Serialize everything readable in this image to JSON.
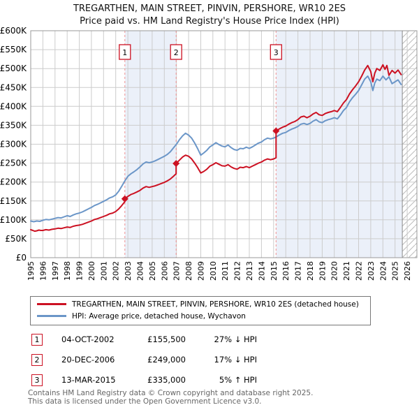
{
  "title": "TREGARTHEN, MAIN STREET, PINVIN, PERSHORE, WR10 2ES",
  "subtitle": "Price paid vs. HM Land Registry's House Price Index (HPI)",
  "legend": [
    {
      "label": "TREGARTHEN, MAIN STREET, PINVIN, PERSHORE, WR10 2ES (detached house)",
      "color": "#cc1122"
    },
    {
      "label": "HPI: Average price, detached house, Wychavon",
      "color": "#6b96c8"
    }
  ],
  "sales": [
    {
      "num": "1",
      "date": "04-OCT-2002",
      "price": "£155,500",
      "hpi": "27% ↓ HPI",
      "year": 2002.75,
      "value": 155.5
    },
    {
      "num": "2",
      "date": "20-DEC-2006",
      "price": "£249,000",
      "hpi": "17% ↓ HPI",
      "year": 2006.97,
      "value": 249
    },
    {
      "num": "3",
      "date": "13-MAR-2015",
      "price": "£335,000",
      "hpi": "5% ↑ HPI",
      "year": 2015.2,
      "value": 335
    }
  ],
  "footer": [
    "Contains HM Land Registry data © Crown copyright and database right 2025.",
    "This data is licensed under the Open Government Licence v3.0."
  ],
  "chart_data": {
    "type": "line",
    "xlabel": "",
    "ylabel": "Price (GBP)",
    "xlim": [
      1995,
      2026.8
    ],
    "ylim": [
      0,
      600
    ],
    "y_unit_thousands_gbp": true,
    "grid": true,
    "legend_position": "below",
    "x_ticks": [
      1995,
      1996,
      1997,
      1998,
      1999,
      2000,
      2001,
      2002,
      2003,
      2004,
      2005,
      2006,
      2007,
      2008,
      2009,
      2010,
      2011,
      2012,
      2013,
      2014,
      2015,
      2016,
      2017,
      2018,
      2019,
      2020,
      2021,
      2022,
      2023,
      2024,
      2025,
      2026
    ],
    "y_tick_labels": [
      "£0",
      "£50K",
      "£100K",
      "£150K",
      "£200K",
      "£250K",
      "£300K",
      "£350K",
      "£400K",
      "£450K",
      "£500K",
      "£550K",
      "£600K"
    ],
    "y_tick_step": 50,
    "ownership_bands": [
      [
        2002.75,
        2006.97
      ],
      [
        2015.2,
        2025.6
      ]
    ],
    "hatch_region": [
      2025.6,
      2026.8
    ],
    "colors": {
      "price_paid": "#cc1122",
      "hpi": "#6b96c8",
      "band": "#ebf0f9",
      "grid": "#cccccc",
      "border": "#999999",
      "sale_line": "#f09090",
      "hatch": "#bbbbbb"
    },
    "sale_markers": [
      [
        2002.75,
        155.5
      ],
      [
        2006.97,
        249
      ],
      [
        2015.2,
        335
      ]
    ],
    "series": [
      {
        "name": "TREGARTHEN, MAIN STREET, PINVIN, PERSHORE, WR10 2ES (detached house)",
        "color": "#cc1122",
        "points": [
          [
            1995.0,
            74
          ],
          [
            1995.17,
            72
          ],
          [
            1995.33,
            70
          ],
          [
            1995.5,
            71
          ],
          [
            1995.67,
            73
          ],
          [
            1995.83,
            72
          ],
          [
            1996.0,
            72
          ],
          [
            1996.25,
            74
          ],
          [
            1996.5,
            73
          ],
          [
            1996.75,
            75
          ],
          [
            1997.0,
            76
          ],
          [
            1997.25,
            78
          ],
          [
            1997.5,
            77
          ],
          [
            1997.75,
            79
          ],
          [
            1998.0,
            81
          ],
          [
            1998.25,
            80
          ],
          [
            1998.5,
            83
          ],
          [
            1998.75,
            85
          ],
          [
            1999.0,
            86
          ],
          [
            1999.25,
            88
          ],
          [
            1999.5,
            91
          ],
          [
            1999.75,
            94
          ],
          [
            2000.0,
            97
          ],
          [
            2000.25,
            101
          ],
          [
            2000.5,
            103
          ],
          [
            2000.75,
            106
          ],
          [
            2001.0,
            109
          ],
          [
            2001.25,
            112
          ],
          [
            2001.5,
            116
          ],
          [
            2001.75,
            118
          ],
          [
            2002.0,
            122
          ],
          [
            2002.25,
            129
          ],
          [
            2002.5,
            138
          ],
          [
            2002.75,
            148
          ],
          [
            2002.75,
            155.5
          ],
          [
            2003.0,
            162
          ],
          [
            2003.25,
            167
          ],
          [
            2003.5,
            170
          ],
          [
            2003.75,
            174
          ],
          [
            2004.0,
            178
          ],
          [
            2004.25,
            184
          ],
          [
            2004.5,
            188
          ],
          [
            2004.75,
            186
          ],
          [
            2005.0,
            188
          ],
          [
            2005.25,
            190
          ],
          [
            2005.5,
            193
          ],
          [
            2005.75,
            196
          ],
          [
            2006.0,
            199
          ],
          [
            2006.25,
            203
          ],
          [
            2006.5,
            208
          ],
          [
            2006.75,
            215
          ],
          [
            2006.97,
            222
          ],
          [
            2006.97,
            249
          ],
          [
            2007.25,
            258
          ],
          [
            2007.5,
            266
          ],
          [
            2007.75,
            271
          ],
          [
            2008.0,
            268
          ],
          [
            2008.25,
            261
          ],
          [
            2008.5,
            250
          ],
          [
            2008.75,
            238
          ],
          [
            2009.0,
            224
          ],
          [
            2009.25,
            228
          ],
          [
            2009.5,
            234
          ],
          [
            2009.75,
            242
          ],
          [
            2010.0,
            246
          ],
          [
            2010.25,
            251
          ],
          [
            2010.5,
            247
          ],
          [
            2010.75,
            243
          ],
          [
            2011.0,
            242
          ],
          [
            2011.25,
            246
          ],
          [
            2011.5,
            240
          ],
          [
            2011.75,
            236
          ],
          [
            2012.0,
            234
          ],
          [
            2012.25,
            239
          ],
          [
            2012.5,
            238
          ],
          [
            2012.75,
            241
          ],
          [
            2013.0,
            238
          ],
          [
            2013.25,
            242
          ],
          [
            2013.5,
            246
          ],
          [
            2013.75,
            250
          ],
          [
            2014.0,
            253
          ],
          [
            2014.25,
            258
          ],
          [
            2014.5,
            261
          ],
          [
            2014.75,
            259
          ],
          [
            2015.0,
            261
          ],
          [
            2015.2,
            264
          ],
          [
            2015.2,
            335
          ],
          [
            2015.5,
            341
          ],
          [
            2015.75,
            345
          ],
          [
            2016.0,
            348
          ],
          [
            2016.25,
            353
          ],
          [
            2016.5,
            357
          ],
          [
            2016.75,
            360
          ],
          [
            2017.0,
            365
          ],
          [
            2017.25,
            372
          ],
          [
            2017.5,
            374
          ],
          [
            2017.75,
            370
          ],
          [
            2018.0,
            374
          ],
          [
            2018.25,
            380
          ],
          [
            2018.5,
            384
          ],
          [
            2018.75,
            378
          ],
          [
            2019.0,
            376
          ],
          [
            2019.25,
            381
          ],
          [
            2019.5,
            384
          ],
          [
            2019.75,
            386
          ],
          [
            2020.0,
            389
          ],
          [
            2020.25,
            386
          ],
          [
            2020.5,
            397
          ],
          [
            2020.75,
            409
          ],
          [
            2021.0,
            418
          ],
          [
            2021.25,
            433
          ],
          [
            2021.5,
            444
          ],
          [
            2021.75,
            454
          ],
          [
            2022.0,
            465
          ],
          [
            2022.25,
            480
          ],
          [
            2022.5,
            496
          ],
          [
            2022.75,
            508
          ],
          [
            2023.0,
            492
          ],
          [
            2023.17,
            465
          ],
          [
            2023.33,
            488
          ],
          [
            2023.5,
            500
          ],
          [
            2023.75,
            495
          ],
          [
            2024.0,
            510
          ],
          [
            2024.17,
            498
          ],
          [
            2024.33,
            508
          ],
          [
            2024.5,
            482
          ],
          [
            2024.75,
            495
          ],
          [
            2025.0,
            488
          ],
          [
            2025.25,
            496
          ],
          [
            2025.5,
            484
          ]
        ]
      },
      {
        "name": "HPI: Average price, detached house, Wychavon",
        "color": "#6b96c8",
        "points": [
          [
            1995.0,
            97
          ],
          [
            1995.25,
            95
          ],
          [
            1995.5,
            97
          ],
          [
            1995.75,
            96
          ],
          [
            1996.0,
            99
          ],
          [
            1996.25,
            101
          ],
          [
            1996.5,
            100
          ],
          [
            1996.75,
            102
          ],
          [
            1997.0,
            104
          ],
          [
            1997.25,
            106
          ],
          [
            1997.5,
            105
          ],
          [
            1997.75,
            108
          ],
          [
            1998.0,
            111
          ],
          [
            1998.25,
            109
          ],
          [
            1998.5,
            113
          ],
          [
            1998.75,
            116
          ],
          [
            1999.0,
            118
          ],
          [
            1999.25,
            121
          ],
          [
            1999.5,
            125
          ],
          [
            1999.75,
            129
          ],
          [
            2000.0,
            133
          ],
          [
            2000.25,
            138
          ],
          [
            2000.5,
            141
          ],
          [
            2000.75,
            145
          ],
          [
            2001.0,
            149
          ],
          [
            2001.25,
            153
          ],
          [
            2001.5,
            158
          ],
          [
            2001.75,
            161
          ],
          [
            2002.0,
            166
          ],
          [
            2002.25,
            176
          ],
          [
            2002.5,
            189
          ],
          [
            2002.75,
            203
          ],
          [
            2003.0,
            215
          ],
          [
            2003.25,
            222
          ],
          [
            2003.5,
            227
          ],
          [
            2003.75,
            233
          ],
          [
            2004.0,
            240
          ],
          [
            2004.25,
            248
          ],
          [
            2004.5,
            253
          ],
          [
            2004.75,
            251
          ],
          [
            2005.0,
            253
          ],
          [
            2005.25,
            256
          ],
          [
            2005.5,
            260
          ],
          [
            2005.75,
            264
          ],
          [
            2006.0,
            268
          ],
          [
            2006.25,
            273
          ],
          [
            2006.5,
            280
          ],
          [
            2006.75,
            290
          ],
          [
            2007.0,
            300
          ],
          [
            2007.25,
            312
          ],
          [
            2007.5,
            322
          ],
          [
            2007.75,
            329
          ],
          [
            2008.0,
            324
          ],
          [
            2008.25,
            316
          ],
          [
            2008.5,
            303
          ],
          [
            2008.75,
            288
          ],
          [
            2009.0,
            271
          ],
          [
            2009.25,
            277
          ],
          [
            2009.5,
            284
          ],
          [
            2009.75,
            293
          ],
          [
            2010.0,
            298
          ],
          [
            2010.25,
            304
          ],
          [
            2010.5,
            299
          ],
          [
            2010.75,
            295
          ],
          [
            2011.0,
            293
          ],
          [
            2011.25,
            298
          ],
          [
            2011.5,
            291
          ],
          [
            2011.75,
            286
          ],
          [
            2012.0,
            284
          ],
          [
            2012.25,
            289
          ],
          [
            2012.5,
            288
          ],
          [
            2012.75,
            292
          ],
          [
            2013.0,
            289
          ],
          [
            2013.25,
            293
          ],
          [
            2013.5,
            298
          ],
          [
            2013.75,
            303
          ],
          [
            2014.0,
            306
          ],
          [
            2014.25,
            312
          ],
          [
            2014.5,
            316
          ],
          [
            2014.75,
            314
          ],
          [
            2015.0,
            316
          ],
          [
            2015.25,
            320
          ],
          [
            2015.5,
            325
          ],
          [
            2015.75,
            329
          ],
          [
            2016.0,
            331
          ],
          [
            2016.25,
            336
          ],
          [
            2016.5,
            340
          ],
          [
            2016.75,
            343
          ],
          [
            2017.0,
            347
          ],
          [
            2017.25,
            353
          ],
          [
            2017.5,
            355
          ],
          [
            2017.75,
            352
          ],
          [
            2018.0,
            355
          ],
          [
            2018.25,
            361
          ],
          [
            2018.5,
            365
          ],
          [
            2018.75,
            359
          ],
          [
            2019.0,
            357
          ],
          [
            2019.25,
            362
          ],
          [
            2019.5,
            365
          ],
          [
            2019.75,
            367
          ],
          [
            2020.0,
            370
          ],
          [
            2020.25,
            367
          ],
          [
            2020.5,
            377
          ],
          [
            2020.75,
            389
          ],
          [
            2021.0,
            397
          ],
          [
            2021.25,
            412
          ],
          [
            2021.5,
            423
          ],
          [
            2021.75,
            432
          ],
          [
            2022.0,
            442
          ],
          [
            2022.25,
            457
          ],
          [
            2022.5,
            472
          ],
          [
            2022.75,
            480
          ],
          [
            2023.0,
            465
          ],
          [
            2023.17,
            442
          ],
          [
            2023.33,
            462
          ],
          [
            2023.5,
            472
          ],
          [
            2023.75,
            468
          ],
          [
            2024.0,
            480
          ],
          [
            2024.25,
            470
          ],
          [
            2024.5,
            478
          ],
          [
            2024.75,
            460
          ],
          [
            2025.0,
            465
          ],
          [
            2025.25,
            470
          ],
          [
            2025.5,
            458
          ]
        ]
      }
    ]
  }
}
